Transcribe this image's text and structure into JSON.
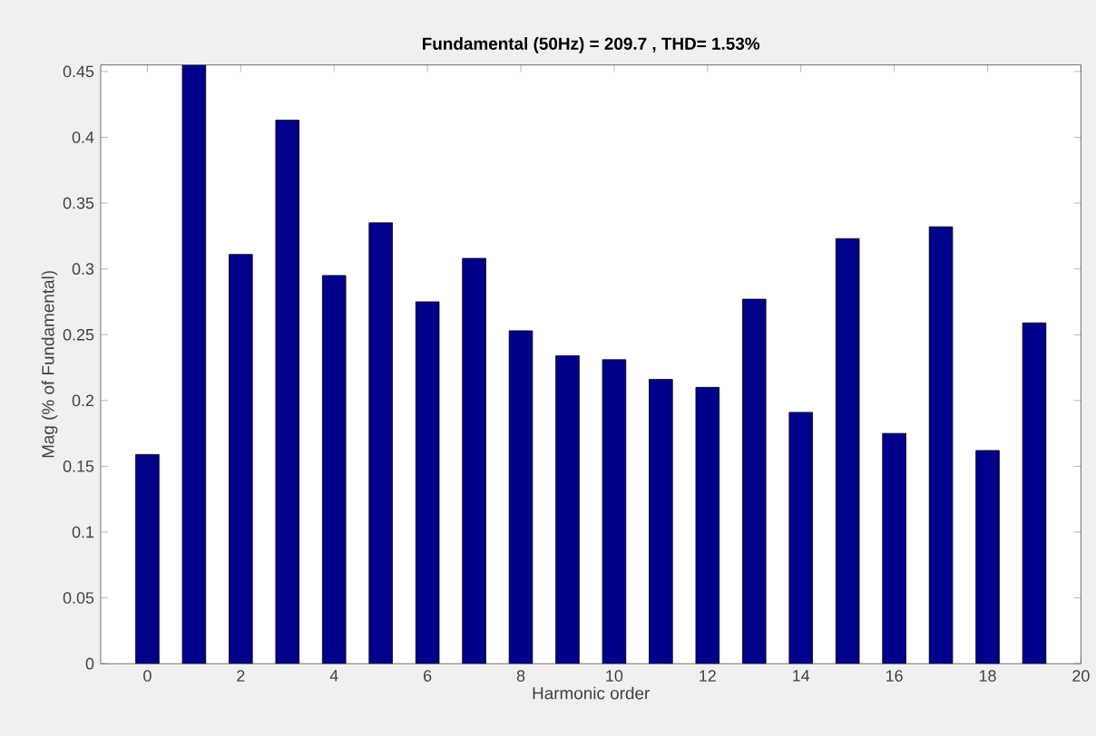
{
  "chart_data": {
    "type": "bar",
    "title": "Fundamental (50Hz) = 209.7 , THD= 1.53%",
    "xlabel": "Harmonic order",
    "ylabel": "Mag (% of Fundamental)",
    "x": [
      0,
      1,
      2,
      3,
      4,
      5,
      6,
      7,
      8,
      9,
      10,
      11,
      12,
      13,
      14,
      15,
      16,
      17,
      18,
      19
    ],
    "values": [
      0.159,
      0.455,
      0.311,
      0.413,
      0.295,
      0.335,
      0.275,
      0.308,
      0.253,
      0.234,
      0.231,
      0.216,
      0.21,
      0.277,
      0.191,
      0.323,
      0.175,
      0.332,
      0.162,
      0.259
    ],
    "color": "#00008b",
    "xlim": [
      -1,
      20
    ],
    "ylim": [
      0,
      0.455
    ],
    "xticks": [
      0,
      2,
      4,
      6,
      8,
      10,
      12,
      14,
      16,
      18,
      20
    ],
    "yticks": [
      0,
      0.05,
      0.1,
      0.15,
      0.2,
      0.25,
      0.3,
      0.35,
      0.4,
      0.45
    ],
    "grid": false
  }
}
